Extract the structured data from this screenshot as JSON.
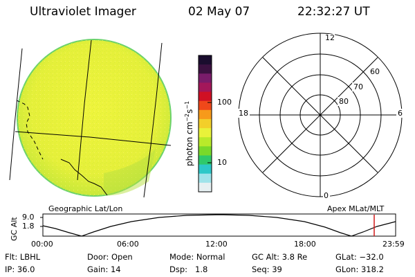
{
  "header": {
    "instrument": "Ultraviolet Imager",
    "date": "02 May 07",
    "time": "22:32:27 UT"
  },
  "image_panel": {
    "projection_label": "Geographic Lat/Lon",
    "disk_color": "#e8f23a",
    "rim_color": "#6bd26b"
  },
  "colorbar": {
    "unit_label": "photon cm",
    "unit_sup1": "−2",
    "unit_s": "s",
    "unit_sup2": "−1",
    "tick_100": "100",
    "tick_10": "10",
    "colors_top_to_bottom": [
      "#1a0d2e",
      "#3b1140",
      "#7a1c6a",
      "#a3175a",
      "#d01024",
      "#f0481a",
      "#f79a1a",
      "#f3cf2a",
      "#e9f23a",
      "#b9ea2a",
      "#79d92a",
      "#2fc96a",
      "#2dc8c8",
      "#9fe3ea",
      "#e6f0f2"
    ]
  },
  "polar_panel": {
    "label": "Apex MLat/MLT",
    "mlt_top": "12",
    "mlt_left": "18",
    "mlt_right": "6",
    "mlt_bottom": "0",
    "lat_60": "60",
    "lat_70": "70",
    "lat_80": "80"
  },
  "altitude_plot": {
    "axis_label": "GC Alt",
    "y_top": "9.0",
    "y_bottom": "1.8",
    "time_ticks": [
      "00:00",
      "06:00",
      "12:00",
      "18:00",
      "23:59"
    ],
    "current_time_marker_color": "#d01818",
    "current_time_hours": 22.54
  },
  "status": {
    "flt_label": "Flt:",
    "flt_value": "LBHL",
    "ip_label": "IP:",
    "ip_value": "36.0",
    "door_label": "Door:",
    "door_value": "Open",
    "gain_label": "Gain:",
    "gain_value": "14",
    "mode_label": "Mode:",
    "mode_value": "Normal",
    "dsp_label": "Dsp:",
    "dsp_value": "1.8",
    "gcalt_label": "GC Alt:",
    "gcalt_value": "3.8 Re",
    "seq_label": "Seq:",
    "seq_value": "39",
    "glat_label": "GLat:",
    "glat_value": "−32.0",
    "glon_label": "GLon:",
    "glon_value": "318.2"
  }
}
